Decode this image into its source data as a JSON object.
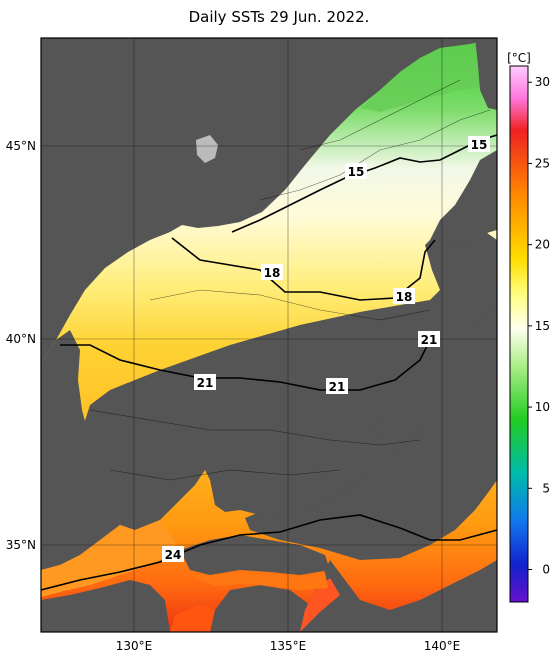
{
  "title": "Daily SSTs 29 Jun. 2022.",
  "colorbar": {
    "unit": "[°C]",
    "ticks": [
      "30",
      "25",
      "20",
      "15",
      "10",
      "5",
      "0"
    ],
    "range": [
      -2,
      31
    ]
  },
  "axes": {
    "lat_labels": [
      "45°N",
      "40°N",
      "35°N"
    ],
    "lon_labels": [
      "130°E",
      "135°E",
      "140°E"
    ]
  },
  "contours": {
    "c15": "15",
    "c15b": "15",
    "c18a": "18",
    "c18b": "18",
    "c21a": "21",
    "c21b": "21",
    "c21c": "21",
    "c24": "24"
  },
  "colors": {
    "land": "#555555",
    "frame": "#000000"
  }
}
